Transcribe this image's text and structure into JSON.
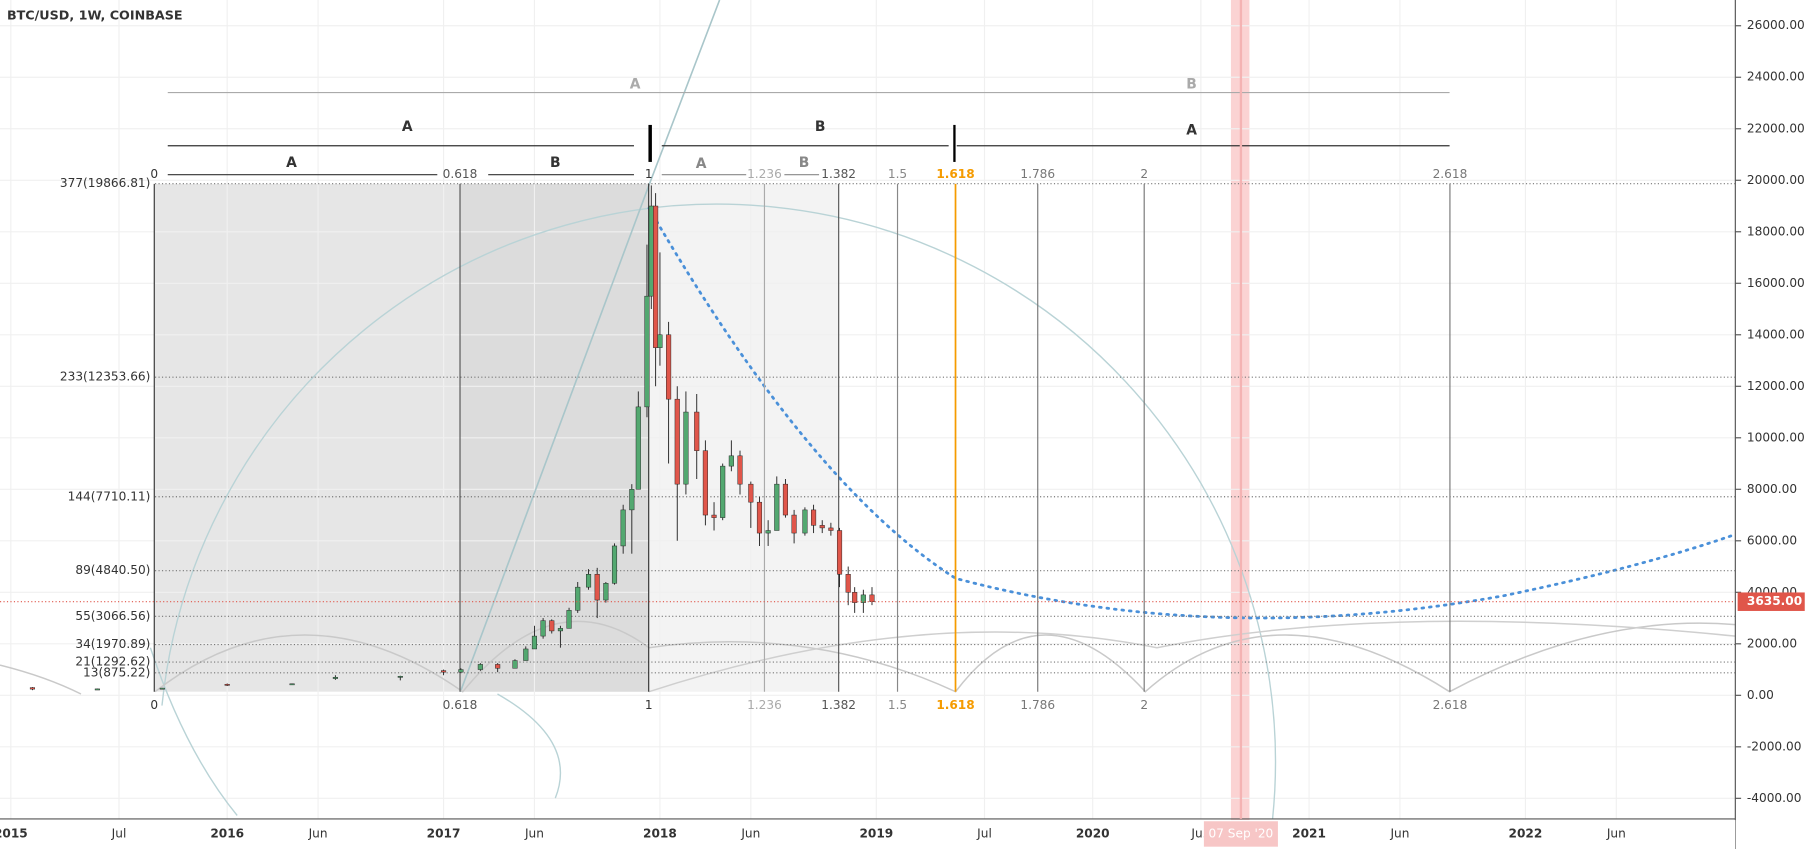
{
  "chart_data": {
    "type": "candlestick",
    "title": "BTC/USD, 1W, COINBASE",
    "xlim": [
      2014.95,
      2022.97
    ],
    "ylim": [
      -4800,
      27000
    ],
    "xticks": [
      2015,
      {
        "value": 2015.5,
        "label": "Jul"
      },
      2016,
      {
        "value": 2016.42,
        "label": "Jun"
      },
      2017,
      {
        "value": 2017.42,
        "label": "Jun"
      },
      2018,
      {
        "value": 2018.42,
        "label": "Jun"
      },
      2019,
      {
        "value": 2019.5,
        "label": "Jul"
      },
      2020,
      {
        "value": 2020.5,
        "label": "Ju.."
      },
      2021,
      {
        "value": 2021.42,
        "label": "Jun"
      },
      2022,
      {
        "value": 2022.42,
        "label": "Jun"
      }
    ],
    "yticks": [
      {
        "value": -4000,
        "label": "-4000.00"
      },
      {
        "value": -2000,
        "label": "-2000.00"
      },
      {
        "value": 0,
        "label": "0.00"
      },
      {
        "value": 2000,
        "label": "2000.00"
      },
      {
        "value": 4000,
        "label": "4000.00"
      },
      {
        "value": 6000,
        "label": "6000.00"
      },
      {
        "value": 8000,
        "label": "8000.00"
      },
      {
        "value": 10000,
        "label": "10000.00"
      },
      {
        "value": 12000,
        "label": "12000.00"
      },
      {
        "value": 14000,
        "label": "14000.00"
      },
      {
        "value": 16000,
        "label": "16000.00"
      },
      {
        "value": 18000,
        "label": "18000.00"
      },
      {
        "value": 20000,
        "label": "20000.00"
      },
      {
        "value": 22000,
        "label": "22000.00"
      },
      {
        "value": 24000,
        "label": "24000.00"
      },
      {
        "value": 26000,
        "label": "26000.00"
      }
    ],
    "up_color": "#53a870",
    "down_color": "#e0564a",
    "candles": {
      "x": [
        2015.1,
        2015.4,
        2015.7,
        2016.0,
        2016.3,
        2016.5,
        2016.8,
        2017.0,
        2017.08,
        2017.17,
        2017.25,
        2017.33,
        2017.38,
        2017.42,
        2017.46,
        2017.5,
        2017.54,
        2017.58,
        2017.62,
        2017.67,
        2017.71,
        2017.75,
        2017.79,
        2017.83,
        2017.87,
        2017.9,
        2017.94,
        2017.96,
        2017.98,
        2018.0,
        2018.04,
        2018.08,
        2018.12,
        2018.17,
        2018.21,
        2018.25,
        2018.29,
        2018.33,
        2018.37,
        2018.42,
        2018.46,
        2018.5,
        2018.54,
        2018.58,
        2018.62,
        2018.67,
        2018.71,
        2018.75,
        2018.79,
        2018.83,
        2018.87,
        2018.9,
        2018.94,
        2018.98
      ],
      "open": [
        300,
        240,
        260,
        430,
        420,
        650,
        700,
        960,
        900,
        1000,
        1200,
        1050,
        1350,
        1800,
        2300,
        2900,
        2500,
        2600,
        3300,
        4200,
        4700,
        3700,
        4350,
        5800,
        7200,
        8000,
        11200,
        15500,
        19000,
        13500,
        14000,
        11500,
        8200,
        11000,
        9500,
        7000,
        6900,
        8900,
        9300,
        8200,
        7500,
        6300,
        6400,
        8200,
        7000,
        6300,
        7200,
        6600,
        6500,
        6400,
        4700,
        4000,
        3600,
        3900
      ],
      "high": [
        320,
        260,
        290,
        460,
        460,
        780,
        760,
        1000,
        1050,
        1250,
        1250,
        1400,
        1900,
        2700,
        3000,
        2950,
        2700,
        3400,
        4400,
        4900,
        4950,
        4400,
        5900,
        7400,
        8200,
        11800,
        17500,
        19800,
        19500,
        17200,
        14500,
        12000,
        11800,
        11700,
        9900,
        7500,
        9000,
        9900,
        9500,
        8300,
        7700,
        6800,
        8500,
        8400,
        7200,
        7300,
        7400,
        6800,
        6700,
        6500,
        5000,
        4200,
        4100,
        4200
      ],
      "low": [
        200,
        210,
        230,
        360,
        400,
        600,
        580,
        780,
        880,
        950,
        900,
        1050,
        1350,
        1800,
        2200,
        2400,
        1850,
        2600,
        3200,
        4100,
        3000,
        3600,
        4300,
        5500,
        5500,
        8000,
        10800,
        15000,
        12000,
        12800,
        9000,
        6000,
        7800,
        8400,
        6600,
        6400,
        6800,
        8700,
        7800,
        6500,
        5800,
        5800,
        6400,
        6900,
        5900,
        6200,
        6300,
        6300,
        6200,
        4200,
        3500,
        3200,
        3200,
        3500
      ],
      "close": [
        240,
        250,
        280,
        420,
        450,
        700,
        740,
        900,
        1000,
        1200,
        1050,
        1350,
        1800,
        2300,
        2900,
        2500,
        2600,
        3300,
        4200,
        4700,
        3700,
        4350,
        5800,
        7200,
        8000,
        11200,
        15500,
        19000,
        13500,
        14000,
        11500,
        8200,
        11000,
        9500,
        7000,
        6900,
        8900,
        9300,
        8200,
        7500,
        6300,
        6400,
        8200,
        7000,
        6300,
        7200,
        6600,
        6500,
        6400,
        4700,
        4000,
        3600,
        3900,
        3635
      ]
    },
    "price_line": {
      "value": 3635,
      "label": "3635.00",
      "color": "#e0564a"
    },
    "fib_levels": [
      {
        "value": 19866.81,
        "label": "377(19866.81)"
      },
      {
        "value": 12353.66,
        "label": "233(12353.66)"
      },
      {
        "value": 7710.11,
        "label": "144(7710.11)"
      },
      {
        "value": 4840.5,
        "label": "89(4840.50)"
      },
      {
        "value": 3066.56,
        "label": "55(3066.56)"
      },
      {
        "value": 1970.89,
        "label": "34(1970.89)"
      },
      {
        "value": 1292.62,
        "label": "21(1292.62)"
      },
      {
        "value": 875.22,
        "label": "13(875.22)"
      }
    ],
    "time_fib": [
      {
        "ratio": 0,
        "x": 2015.663,
        "color": "#333333"
      },
      {
        "ratio": 0.618,
        "x": 2017.076,
        "color": "#555555"
      },
      {
        "ratio": 1,
        "x": 2017.948,
        "color": "#333333"
      },
      {
        "ratio": 1.236,
        "x": 2018.483,
        "color": "#aaaaaa"
      },
      {
        "ratio": 1.382,
        "x": 2018.826,
        "color": "#555555"
      },
      {
        "ratio": 1.5,
        "x": 2019.098,
        "color": "#888888"
      },
      {
        "ratio": 1.618,
        "x": 2019.366,
        "color": "#f59b00"
      },
      {
        "ratio": 1.786,
        "x": 2019.746,
        "color": "#777777"
      },
      {
        "ratio": 2,
        "x": 2020.238,
        "color": "#777777"
      },
      {
        "ratio": 2.618,
        "x": 2021.651,
        "color": "#777777"
      }
    ],
    "date_marker": {
      "x": 2020.685,
      "label": "07 Sep '20"
    },
    "arrow_labels": [
      "A",
      "B",
      "A",
      "B",
      "A",
      "A",
      "B",
      "A",
      "B"
    ]
  }
}
